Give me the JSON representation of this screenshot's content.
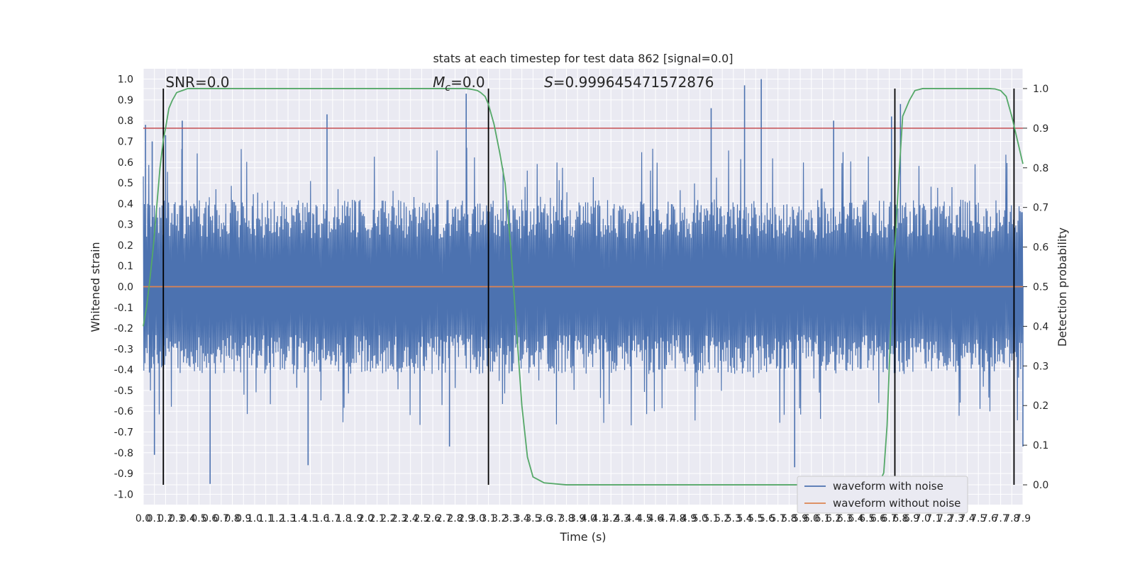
{
  "chart_data": {
    "type": "line",
    "title": "stats at each timestep for test data 862 [signal=0.0]",
    "xlabel": "Time (s)",
    "ylabel": "Whitened strain",
    "y2label": "Detection probability",
    "xlim": [
      0.0,
      7.9
    ],
    "ylim": [
      -1.05,
      1.05
    ],
    "y2lim": [
      -0.05,
      1.05
    ],
    "x_ticks": [
      "0.0",
      "0.1",
      "0.2",
      "0.3",
      "0.4",
      "0.5",
      "0.6",
      "0.7",
      "0.8",
      "0.9",
      "1.0",
      "1.1",
      "1.2",
      "1.3",
      "1.4",
      "1.5",
      "1.6",
      "1.7",
      "1.8",
      "1.9",
      "2.0",
      "2.1",
      "2.2",
      "2.3",
      "2.4",
      "2.5",
      "2.6",
      "2.7",
      "2.8",
      "2.9",
      "3.0",
      "3.1",
      "3.2",
      "3.3",
      "3.4",
      "3.5",
      "3.6",
      "3.7",
      "3.8",
      "3.9",
      "4.0",
      "4.1",
      "4.2",
      "4.3",
      "4.4",
      "4.5",
      "4.6",
      "4.7",
      "4.8",
      "4.9",
      "5.0",
      "5.1",
      "5.2",
      "5.3",
      "5.4",
      "5.5",
      "5.6",
      "5.7",
      "5.8",
      "5.9",
      "6.0",
      "6.1",
      "6.2",
      "6.3",
      "6.4",
      "6.5",
      "6.6",
      "6.7",
      "6.8",
      "6.9",
      "7.0",
      "7.1",
      "7.2",
      "7.3",
      "7.4",
      "7.5",
      "7.6",
      "7.7",
      "7.8",
      "7.9"
    ],
    "y_ticks": [
      "1.0",
      "0.9",
      "0.8",
      "0.7",
      "0.6",
      "0.5",
      "0.4",
      "0.3",
      "0.2",
      "0.1",
      "0.0",
      "-0.1",
      "-0.2",
      "-0.3",
      "-0.4",
      "-0.5",
      "-0.6",
      "-0.7",
      "-0.8",
      "-0.9",
      "-1.0"
    ],
    "y2_ticks": [
      "1.0",
      "0.9",
      "0.8",
      "0.7",
      "0.6",
      "0.5",
      "0.4",
      "0.3",
      "0.2",
      "0.1",
      "0.0"
    ],
    "grid": true,
    "legend_position": "lower-right",
    "series": [
      {
        "name": "waveform with noise",
        "color": "#4c72b0",
        "axis": "left",
        "kind": "noise-band",
        "envelope_typical": 0.42,
        "extremes": [
          {
            "x": 0.02,
            "y": 0.78
          },
          {
            "x": 0.08,
            "y": 0.7
          },
          {
            "x": 0.1,
            "y": -0.81
          },
          {
            "x": 0.2,
            "y": 0.73
          },
          {
            "x": 0.35,
            "y": 0.8
          },
          {
            "x": 0.6,
            "y": -0.95
          },
          {
            "x": 1.65,
            "y": 0.83
          },
          {
            "x": 1.48,
            "y": -0.86
          },
          {
            "x": 2.9,
            "y": 0.93
          },
          {
            "x": 2.75,
            "y": -0.77
          },
          {
            "x": 5.1,
            "y": 0.86
          },
          {
            "x": 5.4,
            "y": 0.97
          },
          {
            "x": 5.55,
            "y": 1.0
          },
          {
            "x": 5.85,
            "y": -0.87
          },
          {
            "x": 6.2,
            "y": 0.8
          },
          {
            "x": 6.72,
            "y": 0.82
          },
          {
            "x": 6.8,
            "y": 0.88
          },
          {
            "x": 7.9,
            "y": -0.77
          }
        ]
      },
      {
        "name": "waveform without noise",
        "color": "#dd8452",
        "axis": "left",
        "x": [
          0.0,
          7.9
        ],
        "y": [
          0.0,
          0.0
        ]
      },
      {
        "name": "",
        "color": "#55a868",
        "axis": "right",
        "x": [
          0.0,
          0.03,
          0.06,
          0.09,
          0.12,
          0.15,
          0.18,
          0.2,
          0.23,
          0.26,
          0.3,
          0.35,
          0.4,
          0.5,
          0.7,
          1.0,
          2.0,
          2.7,
          2.8,
          2.9,
          2.95,
          3.0,
          3.03,
          3.07,
          3.1,
          3.15,
          3.2,
          3.25,
          3.3,
          3.35,
          3.4,
          3.45,
          3.5,
          3.6,
          3.8,
          4.5,
          5.5,
          6.5,
          6.6,
          6.65,
          6.68,
          6.7,
          6.72,
          6.75,
          6.78,
          6.82,
          6.88,
          6.93,
          7.0,
          7.2,
          7.5,
          7.6,
          7.65,
          7.7,
          7.75,
          7.8,
          7.85,
          7.9
        ],
        "y": [
          0.4,
          0.45,
          0.52,
          0.6,
          0.7,
          0.8,
          0.87,
          0.9,
          0.95,
          0.97,
          0.99,
          0.995,
          1.0,
          1.0,
          1.0,
          1.0,
          1.0,
          1.0,
          1.0,
          1.0,
          0.998,
          0.995,
          0.99,
          0.98,
          0.96,
          0.91,
          0.84,
          0.76,
          0.6,
          0.4,
          0.2,
          0.07,
          0.02,
          0.005,
          0.0,
          0.0,
          0.0,
          0.0,
          0.0,
          0.03,
          0.15,
          0.3,
          0.45,
          0.6,
          0.75,
          0.93,
          0.97,
          0.995,
          1.0,
          1.0,
          1.0,
          1.0,
          0.999,
          0.995,
          0.98,
          0.93,
          0.87,
          0.81
        ]
      }
    ],
    "threshold": {
      "value": 0.9,
      "axis": "right",
      "color": "#c44e52"
    },
    "event_markers_x": [
      0.18,
      3.1,
      6.75,
      7.82
    ],
    "annotations": [
      {
        "text": "SNR=0.0",
        "x": 0.2
      },
      {
        "text": "M_c=0.0",
        "x": 2.6
      },
      {
        "text": "S=0.999645471572876",
        "x": 3.6
      }
    ]
  }
}
